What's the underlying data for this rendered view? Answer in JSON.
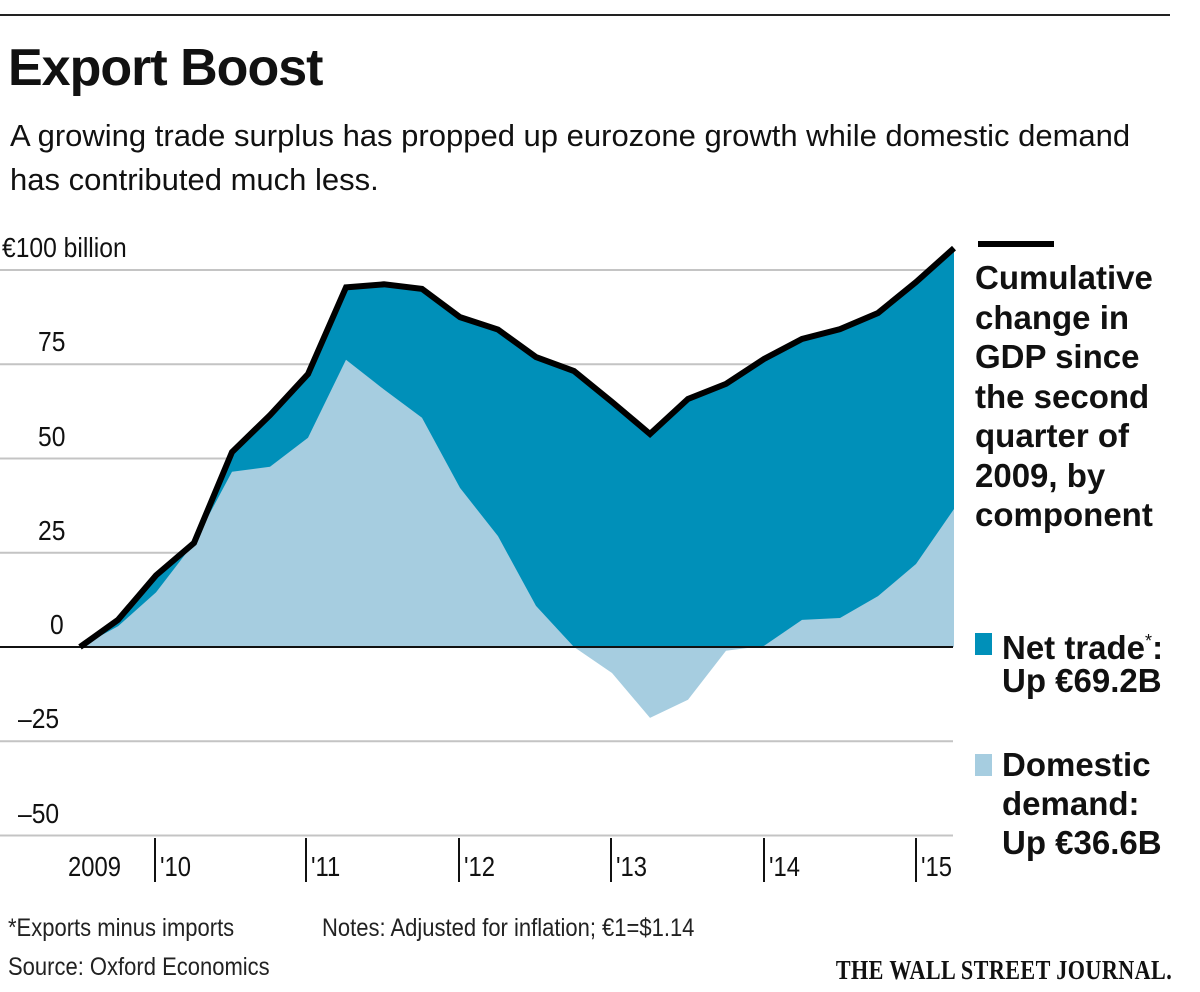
{
  "header": {
    "title": "Export Boost",
    "subtitle": "A growing trade surplus has propped up eurozone growth while domestic demand has contributed much less."
  },
  "chart_data": {
    "type": "area",
    "title": "Export Boost",
    "ylabel": "€ billion",
    "y_unit_label": "€100 billion",
    "ylim": [
      -50,
      100
    ],
    "yticks": [
      100,
      75,
      50,
      25,
      0,
      -25,
      -50
    ],
    "ytick_labels": [
      "€100 billion",
      "75",
      "50",
      "25",
      "0",
      "–25",
      "–50"
    ],
    "xtick_labels": [
      "2009",
      "'10",
      "'11",
      "'12",
      "'13",
      "'14",
      "'15"
    ],
    "x": [
      "2009Q2",
      "2009Q3",
      "2009Q4",
      "2010Q1",
      "2010Q2",
      "2010Q3",
      "2010Q4",
      "2011Q1",
      "2011Q2",
      "2011Q3",
      "2011Q4",
      "2012Q1",
      "2012Q2",
      "2012Q3",
      "2012Q4",
      "2013Q1",
      "2013Q2",
      "2013Q3",
      "2013Q4",
      "2014Q1",
      "2014Q2",
      "2014Q3",
      "2014Q4",
      "2015Q1"
    ],
    "grid": true,
    "legend_position": "right",
    "series": [
      {
        "name": "Cumulative change in GDP since the second quarter of 2009, by component",
        "type": "line",
        "color": "#000000",
        "values": [
          0,
          7.2,
          19,
          27.6,
          51.7,
          61.5,
          72.4,
          95.4,
          96.2,
          95,
          87.5,
          84.2,
          76.9,
          73.2,
          65,
          56.5,
          65.8,
          69.8,
          76.4,
          81.7,
          84.3,
          88.6,
          96.8,
          105.8
        ]
      },
      {
        "name": "Net trade",
        "type": "area",
        "color": "#0090b9",
        "values": [
          0,
          1.7,
          4.5,
          0,
          5.2,
          13.7,
          16.9,
          19.2,
          27.9,
          34.2,
          45.3,
          54.8,
          66,
          73.2,
          71.9,
          75.3,
          79.8,
          70.8,
          76.1,
          74.5,
          76.6,
          75.1,
          74.8,
          69.2
        ]
      },
      {
        "name": "Domestic demand",
        "type": "area",
        "color": "#a6cde0",
        "values": [
          0,
          5.5,
          14.5,
          27.6,
          46.5,
          47.8,
          55.5,
          76.2,
          68.3,
          60.8,
          42.2,
          29.4,
          10.9,
          0,
          -6.9,
          -18.8,
          -14,
          -1,
          0.3,
          7.2,
          7.7,
          13.5,
          22,
          36.6
        ]
      }
    ]
  },
  "legend": {
    "total_label": "Cumulative change in GDP since the second quarter of 2009, by component",
    "total_lines": "Cumulative\nchange in\nGDP since\nthe second\nquarter of\n2009, by\ncomponent",
    "net_trade_label": "Net trade",
    "net_trade_mark": "*",
    "net_trade_colon": ":",
    "net_trade_value": "Up €69.2B",
    "domestic_label": "Domestic\ndemand:",
    "domestic_value": "Up €36.6B"
  },
  "footer": {
    "footnote": "*Exports minus imports",
    "notes": "Notes: Adjusted for inflation; €1=$1.14",
    "source": "Source: Oxford Economics",
    "publisher": "THE WALL STREET JOURNAL."
  }
}
